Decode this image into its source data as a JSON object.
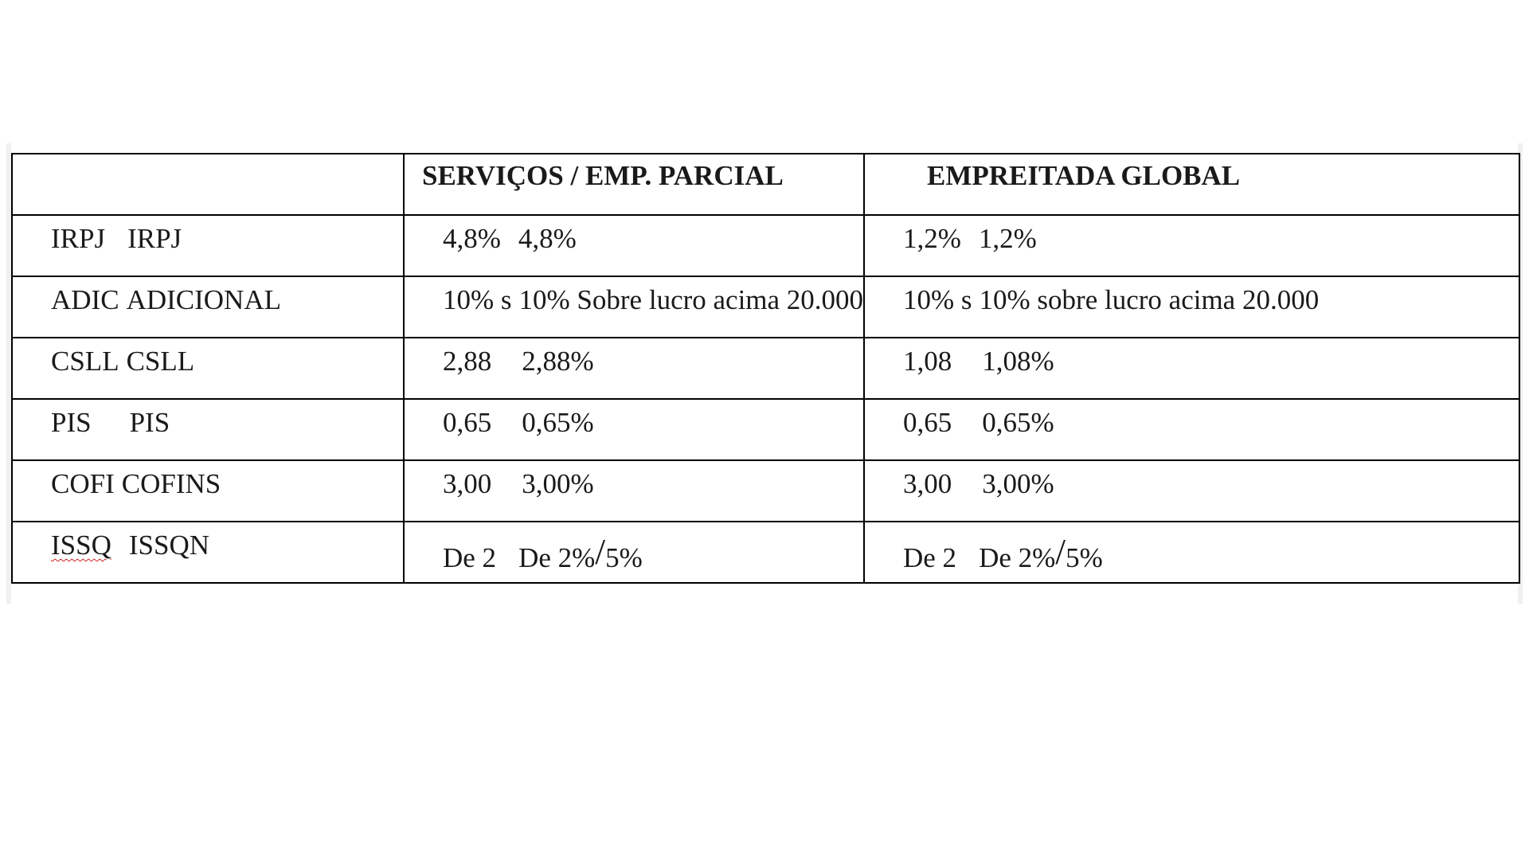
{
  "table": {
    "headers": {
      "tax": "",
      "servicos": "SERVIÇOS / EMP. PARCIAL",
      "global": "EMPREITADA GLOBAL"
    },
    "rows": [
      {
        "tax_abbr": "IRPJ",
        "tax_full": "IRPJ",
        "sv_short": "4,8%",
        "sv_full": "4,8%",
        "eg_short": "1,2%",
        "eg_full": "1,2%"
      },
      {
        "tax_abbr": "ADIC",
        "tax_full": "ADICIONAL",
        "sv_short": "10% s",
        "sv_full": "10% Sobre lucro acima 20.000",
        "eg_short": "10% s",
        "eg_full": "10% sobre lucro acima 20.000"
      },
      {
        "tax_abbr": "CSLL",
        "tax_full": "CSLL",
        "sv_short": "2,88",
        "sv_full": "2,88%",
        "eg_short": "1,08",
        "eg_full": "1,08%"
      },
      {
        "tax_abbr": "PIS",
        "tax_full": "PIS",
        "sv_short": "0,65",
        "sv_full": "0,65%",
        "eg_short": "0,65",
        "eg_full": "0,65%"
      },
      {
        "tax_abbr": "COFI",
        "tax_full": "COFINS",
        "sv_short": "3,00",
        "sv_full": "3,00%",
        "eg_short": "3,00",
        "eg_full": "3,00%"
      },
      {
        "tax_abbr": "ISSQ",
        "tax_full": "ISSQN",
        "sv_short": "De 2",
        "sv_full_a": "De 2%",
        "sv_full_slash": "/",
        "sv_full_b": "5%",
        "eg_short": "De 2",
        "eg_full_a": "De 2%",
        "eg_full_slash": "/",
        "eg_full_b": "5%"
      }
    ]
  }
}
